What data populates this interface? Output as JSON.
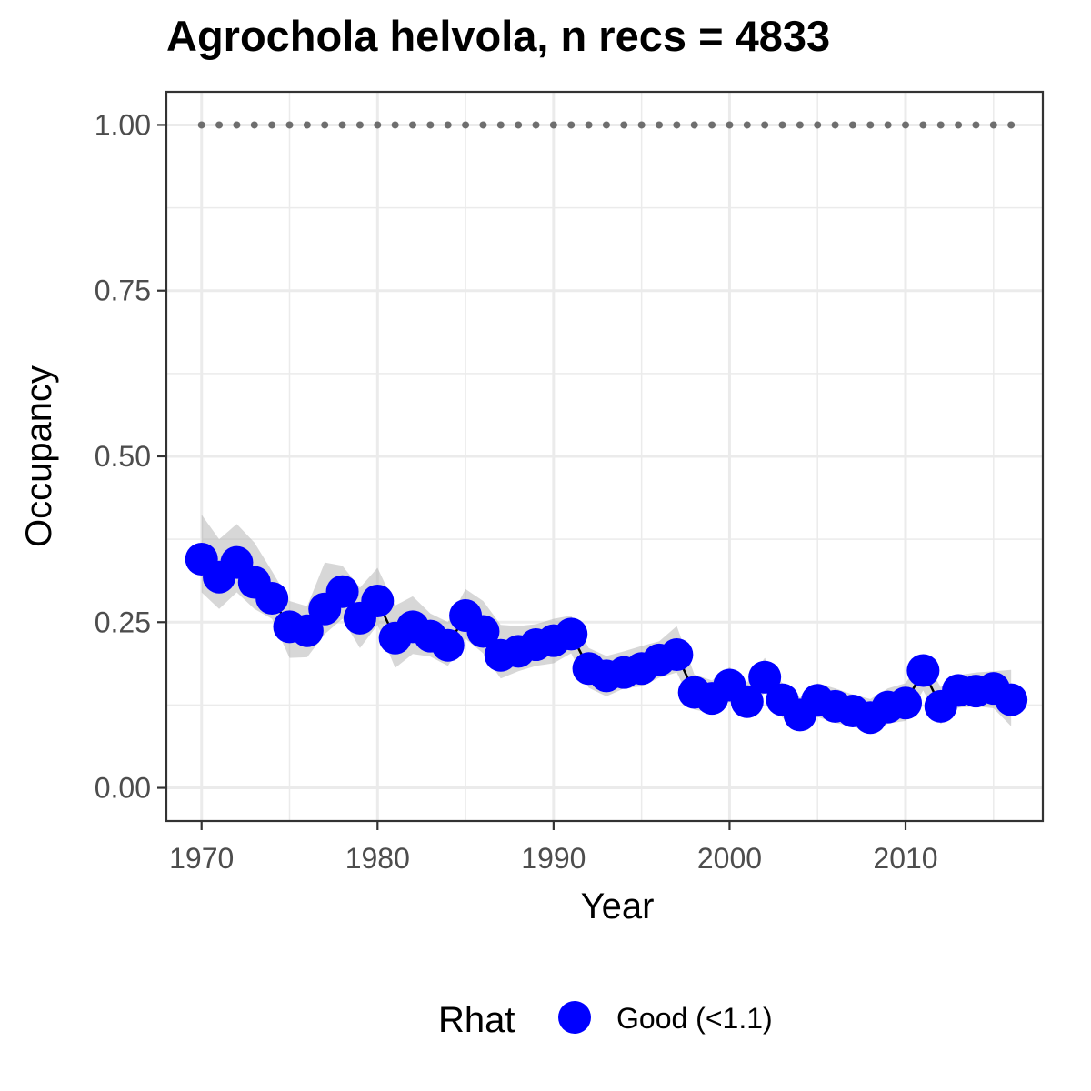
{
  "chart_data": {
    "type": "line",
    "title": "Agrochola helvola, n recs = 4833",
    "xlabel": "Year",
    "ylabel": "Occupancy",
    "xlim": [
      1968,
      2017.8
    ],
    "ylim": [
      -0.05,
      1.05
    ],
    "xticks": [
      1970,
      1980,
      1990,
      2000,
      2010
    ],
    "yticks": [
      0.0,
      0.25,
      0.5,
      0.75,
      1.0
    ],
    "ytick_labels": [
      "0.00",
      "0.25",
      "0.50",
      "0.75",
      "1.00"
    ],
    "grid": true,
    "legend": {
      "position": "bottom",
      "title": "Rhat",
      "entries": [
        {
          "label": "Good (<1.1)",
          "color": "#0000ff"
        }
      ]
    },
    "reference_line": {
      "y": 1.0,
      "style": "dotted",
      "color": "#6e6e6e"
    },
    "x": [
      1970,
      1971,
      1972,
      1973,
      1974,
      1975,
      1976,
      1977,
      1978,
      1979,
      1980,
      1981,
      1982,
      1983,
      1984,
      1985,
      1986,
      1987,
      1988,
      1989,
      1990,
      1991,
      1992,
      1993,
      1994,
      1995,
      1996,
      1997,
      1998,
      1999,
      2000,
      2001,
      2002,
      2003,
      2004,
      2005,
      2006,
      2007,
      2008,
      2009,
      2010,
      2011,
      2012,
      2013,
      2014,
      2015,
      2016
    ],
    "series": [
      {
        "values": [
          0.345,
          0.318,
          0.34,
          0.31,
          0.286,
          0.243,
          0.237,
          0.27,
          0.296,
          0.256,
          0.282,
          0.226,
          0.243,
          0.229,
          0.215,
          0.26,
          0.236,
          0.2,
          0.206,
          0.216,
          0.222,
          0.232,
          0.18,
          0.169,
          0.174,
          0.18,
          0.193,
          0.201,
          0.144,
          0.135,
          0.155,
          0.13,
          0.167,
          0.133,
          0.11,
          0.132,
          0.123,
          0.116,
          0.106,
          0.122,
          0.128,
          0.177,
          0.123,
          0.147,
          0.146,
          0.15,
          0.133
        ],
        "lower": [
          0.295,
          0.27,
          0.295,
          0.27,
          0.255,
          0.196,
          0.197,
          0.232,
          0.255,
          0.211,
          0.246,
          0.181,
          0.202,
          0.198,
          0.184,
          0.225,
          0.203,
          0.165,
          0.176,
          0.184,
          0.188,
          0.203,
          0.151,
          0.138,
          0.15,
          0.153,
          0.166,
          0.174,
          0.118,
          0.113,
          0.13,
          0.108,
          0.144,
          0.106,
          0.086,
          0.107,
          0.098,
          0.093,
          0.082,
          0.097,
          0.101,
          0.147,
          0.096,
          0.121,
          0.123,
          0.12,
          0.093
        ],
        "upper": [
          0.412,
          0.375,
          0.398,
          0.37,
          0.327,
          0.282,
          0.274,
          0.34,
          0.335,
          0.302,
          0.332,
          0.275,
          0.289,
          0.263,
          0.25,
          0.3,
          0.282,
          0.246,
          0.244,
          0.247,
          0.255,
          0.26,
          0.211,
          0.199,
          0.206,
          0.214,
          0.221,
          0.244,
          0.171,
          0.162,
          0.182,
          0.159,
          0.196,
          0.158,
          0.136,
          0.158,
          0.15,
          0.141,
          0.134,
          0.15,
          0.158,
          0.198,
          0.152,
          0.17,
          0.174,
          0.176,
          0.178
        ],
        "color": "#0000ff"
      }
    ]
  }
}
